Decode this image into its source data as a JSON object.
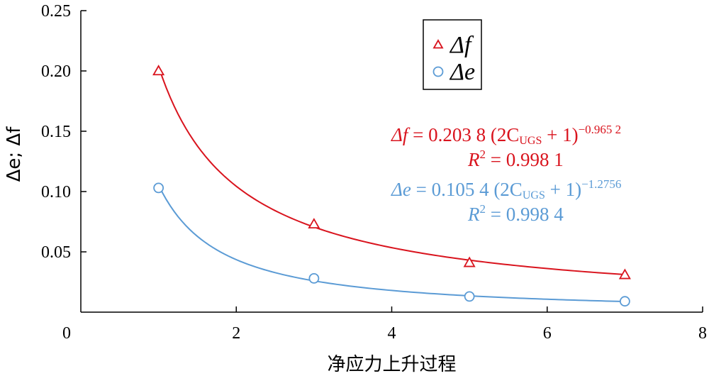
{
  "chart_data": {
    "type": "scatter",
    "xlabel": "净应力上升过程",
    "ylabel": "Δe; Δf",
    "xlim": [
      0,
      8
    ],
    "ylim": [
      0,
      0.25
    ],
    "x_ticks": [
      "0",
      "2",
      "4",
      "6",
      "8"
    ],
    "y_ticks": [
      "0.05",
      "0.10",
      "0.15",
      "0.20",
      "0.25"
    ],
    "y_tick_values": [
      0.05,
      0.1,
      0.15,
      0.2,
      0.25
    ],
    "x_tick_values": [
      0,
      2,
      4,
      6,
      8
    ],
    "grid": false,
    "legend_position": "top-center",
    "series": [
      {
        "name": "Δf",
        "marker": "triangle",
        "color": "#d9141e",
        "x": [
          1,
          3,
          5,
          7
        ],
        "y": [
          0.2,
          0.073,
          0.041,
          0.031
        ],
        "fit": {
          "a": 0.2038,
          "b": -0.9652
        },
        "equation": {
          "lhs": "Δf",
          "body": " = 0.203 8 (2C",
          "sub": "UGS",
          "tail": " + 1)",
          "sup": "−0.965 2"
        },
        "r2": {
          "label": "R",
          "text": " = 0.998 1"
        }
      },
      {
        "name": "Δe",
        "marker": "circle",
        "color": "#5b9bd5",
        "x": [
          1,
          3,
          5,
          7
        ],
        "y": [
          0.103,
          0.028,
          0.013,
          0.009
        ],
        "fit": {
          "a": 0.1054,
          "b": -1.2756
        },
        "equation": {
          "lhs": "Δe",
          "body": " = 0.105 4 (2C",
          "sub": "UGS",
          "tail": " + 1)",
          "sup": "−1.2756"
        },
        "r2": {
          "label": "R",
          "text": " = 0.998 4"
        }
      }
    ]
  }
}
